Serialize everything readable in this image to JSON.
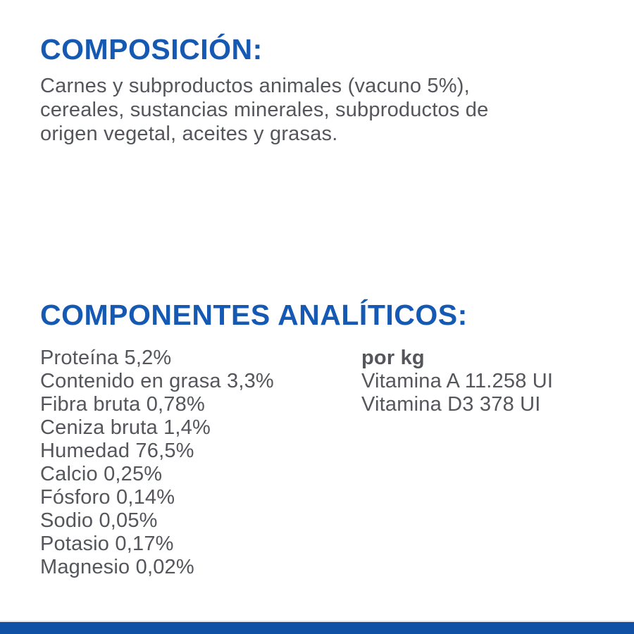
{
  "theme": {
    "accent_blue": "#1559b3",
    "bar_blue": "#1051a6",
    "text_gray": "#54565b",
    "background": "#ffffff"
  },
  "composition": {
    "heading": "COMPOSICIÓN:",
    "lines": [
      "Carnes y subproductos animales (vacuno 5%),",
      "cereales, sustancias minerales, subproductos de",
      "origen vegetal, aceites y grasas."
    ]
  },
  "analytical": {
    "heading": "COMPONENTES ANALÍTICOS:",
    "nutrients": [
      {
        "label": "Proteína",
        "value": "5,2%"
      },
      {
        "label": "Contenido en grasa",
        "value": "3,3%"
      },
      {
        "label": "Fibra bruta",
        "value": "0,78%"
      },
      {
        "label": "Ceniza bruta",
        "value": "1,4%"
      },
      {
        "label": "Humedad",
        "value": "76,5%"
      },
      {
        "label": "Calcio",
        "value": "0,25%"
      },
      {
        "label": "Fósforo",
        "value": "0,14%"
      },
      {
        "label": "Sodio",
        "value": "0,05%"
      },
      {
        "label": "Potasio",
        "value": "0,17%"
      },
      {
        "label": "Magnesio",
        "value": "0,02%"
      }
    ],
    "per_kg": {
      "label": "por kg",
      "items": [
        {
          "label": "Vitamina A",
          "value": "11.258 UI"
        },
        {
          "label": "Vitamina D3",
          "value": "378 UI"
        }
      ]
    }
  }
}
